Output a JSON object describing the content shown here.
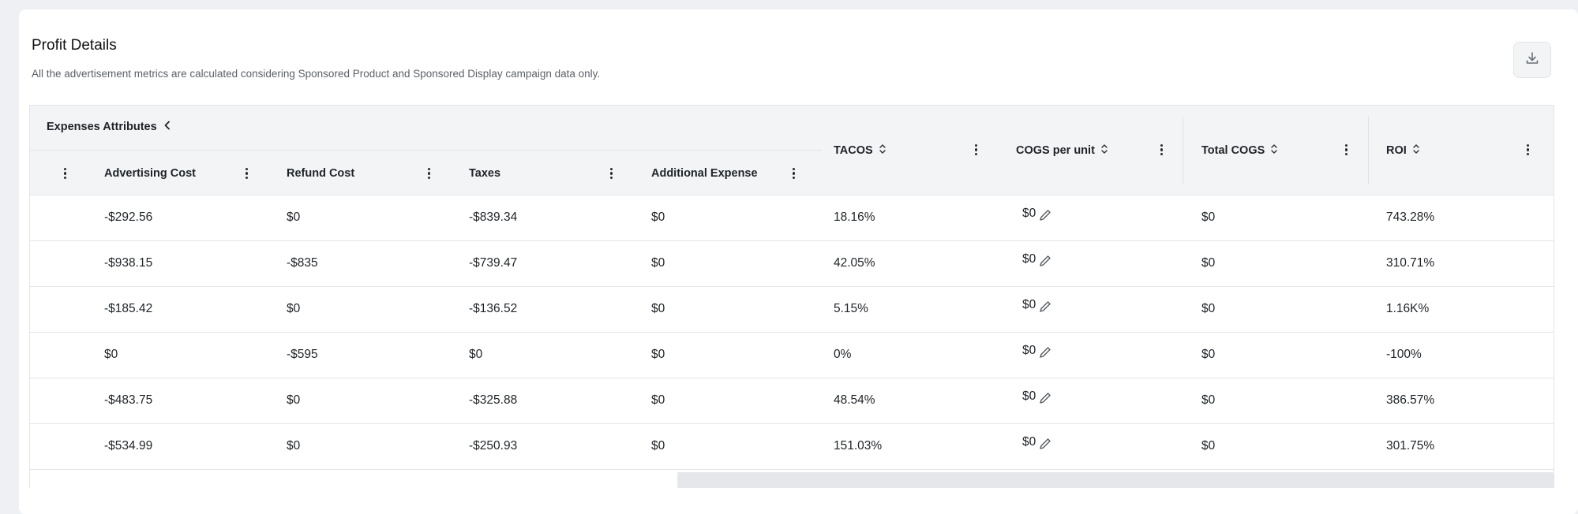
{
  "header": {
    "title": "Profit Details",
    "subtitle": "All the advertisement metrics are calculated considering Sponsored Product and Sponsored Display campaign data only.",
    "download_icon": "download-icon"
  },
  "table": {
    "group_label": "Expenses Attributes",
    "columns": {
      "advertising_cost": "Advertising Cost",
      "refund_cost": "Refund Cost",
      "taxes": "Taxes",
      "additional_expense": "Additional Expense",
      "tacos": "TACOS",
      "cogs_per_unit": "COGS per unit",
      "total_cogs": "Total COGS",
      "roi": "ROI"
    },
    "rows": [
      {
        "advertising_cost": "-$292.56",
        "refund_cost": "$0",
        "taxes": "-$839.34",
        "additional_expense": "$0",
        "tacos": "18.16%",
        "cogs_per_unit": "$0",
        "total_cogs": "$0",
        "roi": "743.28%"
      },
      {
        "advertising_cost": "-$938.15",
        "refund_cost": "-$835",
        "taxes": "-$739.47",
        "additional_expense": "$0",
        "tacos": "42.05%",
        "cogs_per_unit": "$0",
        "total_cogs": "$0",
        "roi": "310.71%"
      },
      {
        "advertising_cost": "-$185.42",
        "refund_cost": "$0",
        "taxes": "-$136.52",
        "additional_expense": "$0",
        "tacos": "5.15%",
        "cogs_per_unit": "$0",
        "total_cogs": "$0",
        "roi": "1.16K%"
      },
      {
        "advertising_cost": "$0",
        "refund_cost": "-$595",
        "taxes": "$0",
        "additional_expense": "$0",
        "tacos": "0%",
        "cogs_per_unit": "$0",
        "total_cogs": "$0",
        "roi": "-100%"
      },
      {
        "advertising_cost": "-$483.75",
        "refund_cost": "$0",
        "taxes": "-$325.88",
        "additional_expense": "$0",
        "tacos": "48.54%",
        "cogs_per_unit": "$0",
        "total_cogs": "$0",
        "roi": "386.57%"
      },
      {
        "advertising_cost": "-$534.99",
        "refund_cost": "$0",
        "taxes": "-$250.93",
        "additional_expense": "$0",
        "tacos": "151.03%",
        "cogs_per_unit": "$0",
        "total_cogs": "$0",
        "roi": "301.75%"
      }
    ]
  }
}
